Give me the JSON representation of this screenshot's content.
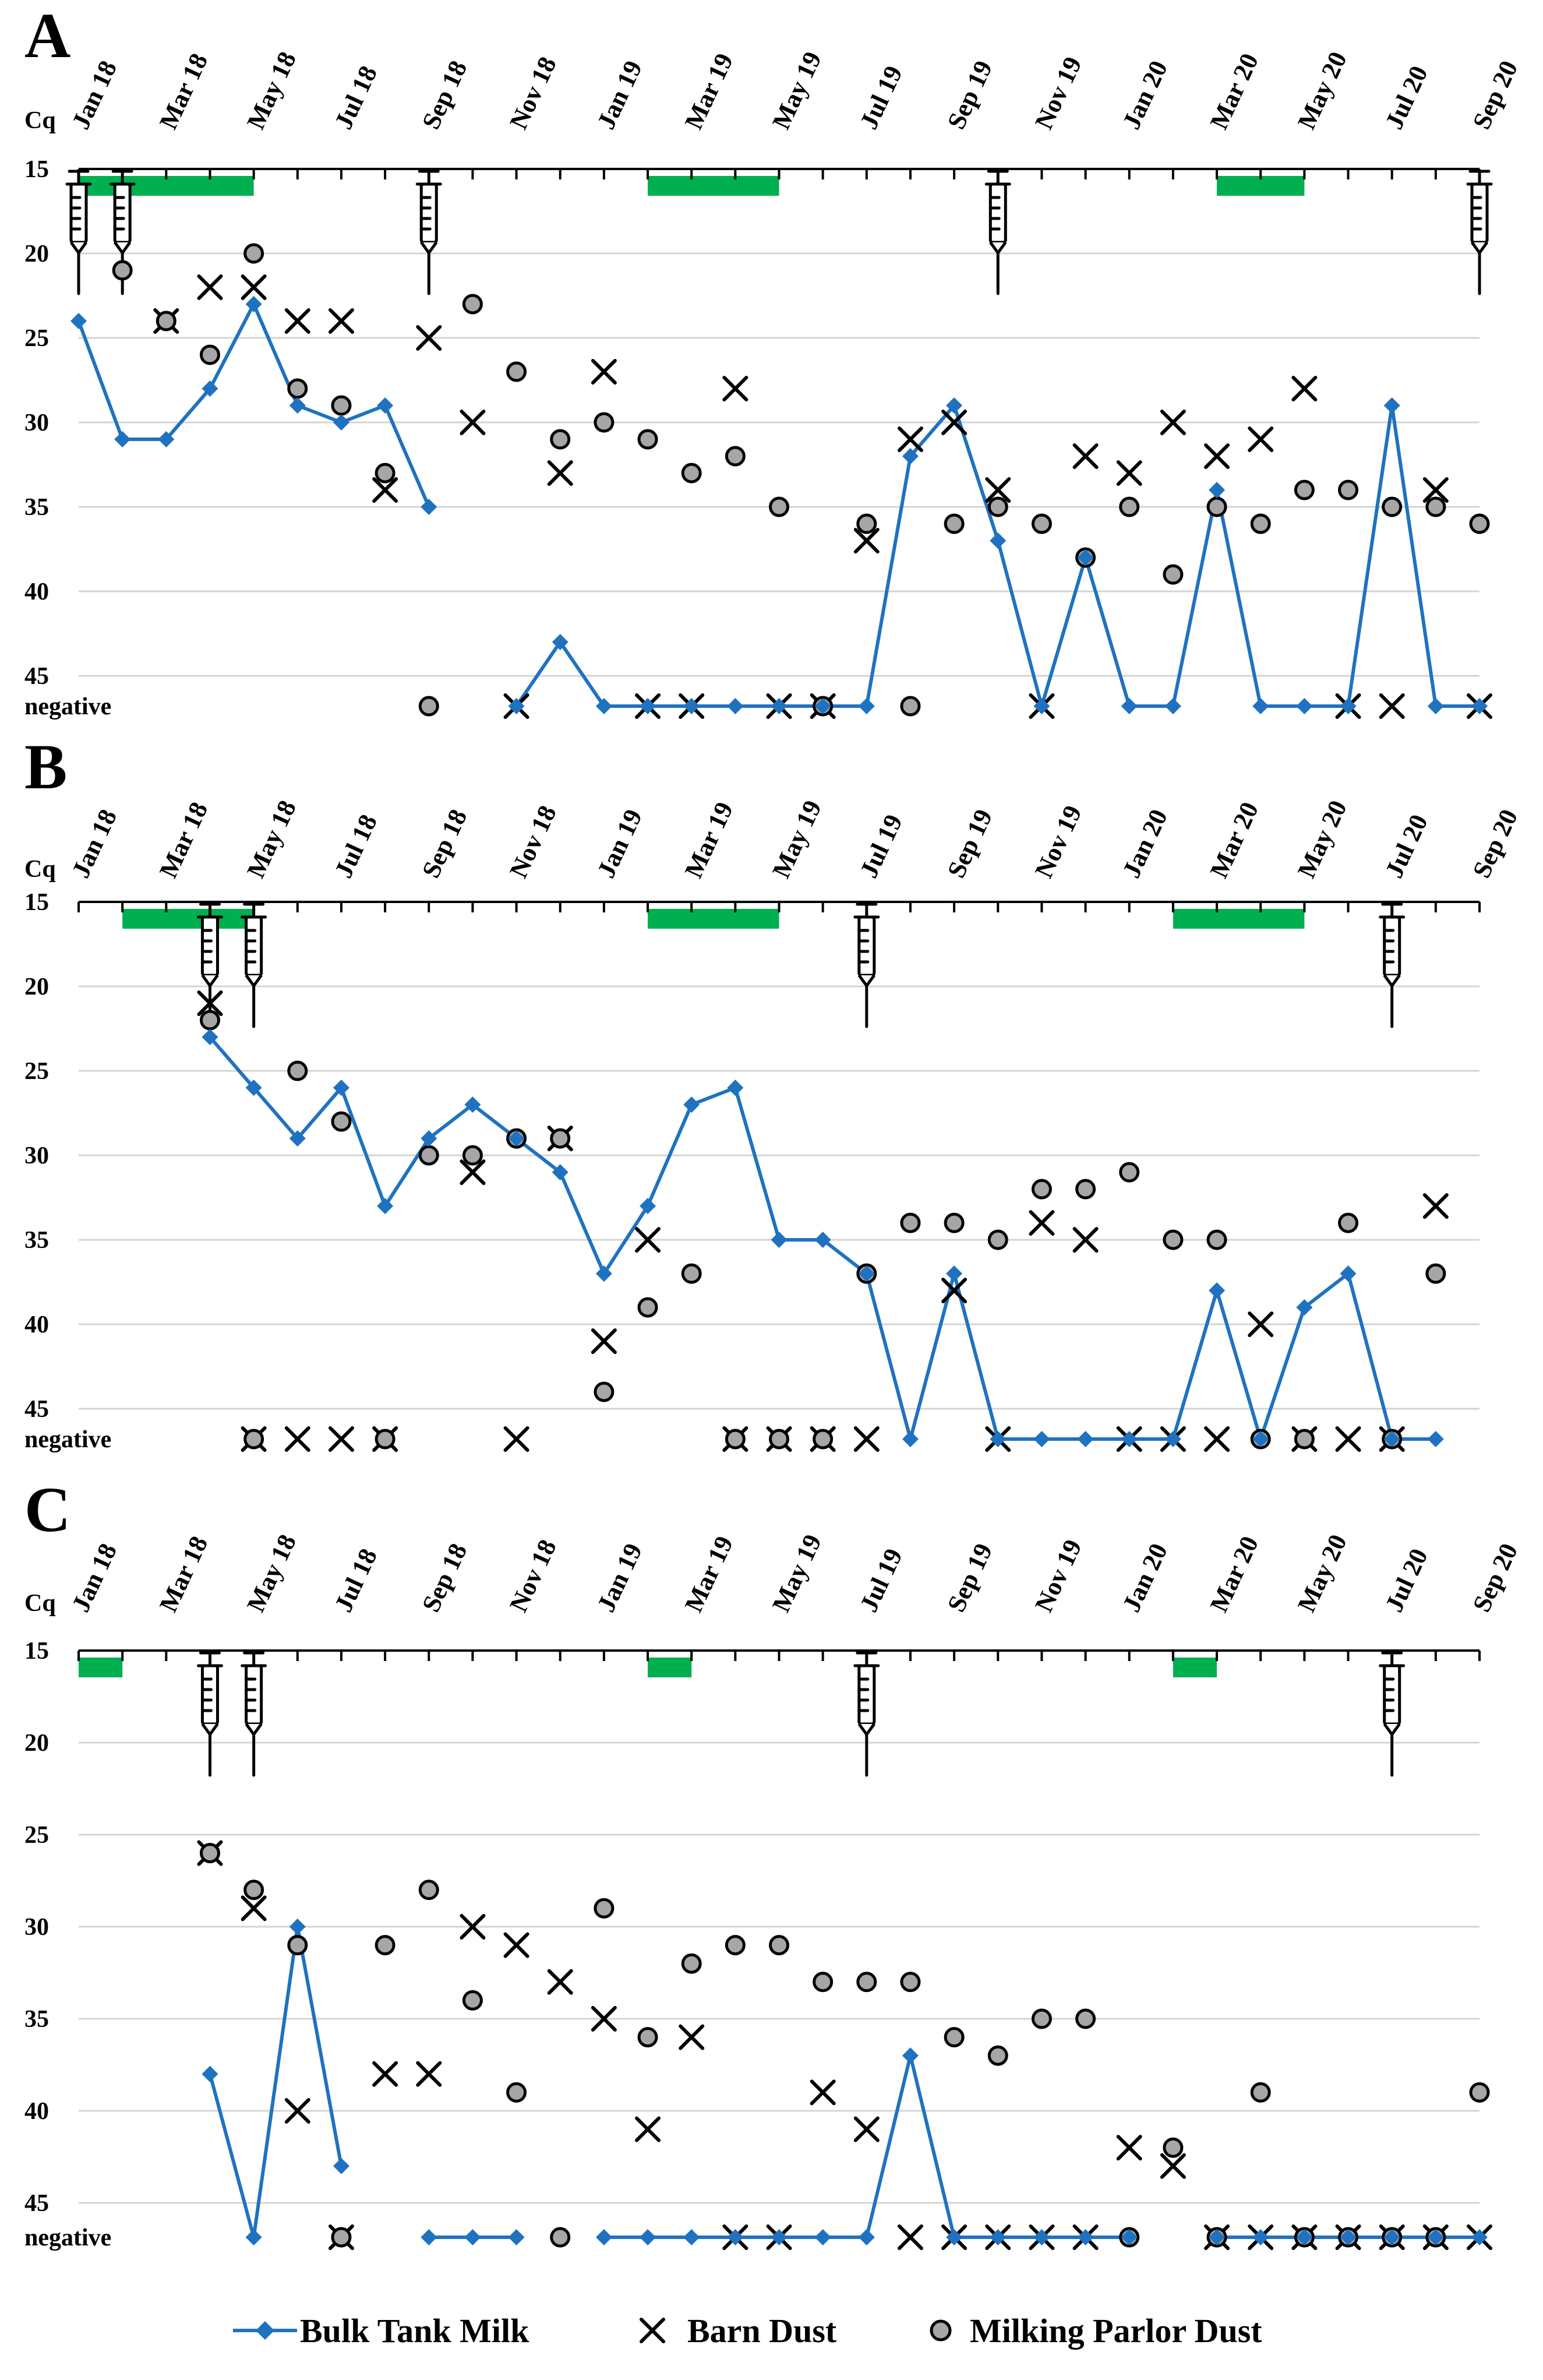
{
  "legend": {
    "milk": "Bulk Tank Milk",
    "barn": "Barn Dust",
    "parlor": "Milking Parlor Dust"
  },
  "colors": {
    "milk": "#1f72c0",
    "pasture": "#00b050",
    "parlor_fill": "#a6a6a6"
  },
  "icons": {
    "vaccination": "syringe-icon",
    "pasture_period": "green-bar"
  },
  "chart_data": [
    {
      "panel": "A",
      "type": "line",
      "ylabel": "Cq",
      "y_ticks": [
        "15",
        "20",
        "25",
        "30",
        "35",
        "40",
        "45",
        "negative"
      ],
      "ylim": [
        15,
        47
      ],
      "negative_value": 47,
      "x_labels": [
        "Jan 18",
        "Mar 18",
        "May 18",
        "Jul 18",
        "Sep 18",
        "Nov 18",
        "Jan 19",
        "Mar 19",
        "May 19",
        "Jul 19",
        "Sep 19",
        "Nov 19",
        "Jan 20",
        "Mar 20",
        "May 20",
        "Jul 20",
        "Sep 20"
      ],
      "x_month_range": [
        0,
        32
      ],
      "vaccinations_month": [
        0,
        1,
        8,
        21,
        32
      ],
      "pasture_months": [
        [
          0,
          4
        ],
        [
          13,
          16
        ],
        [
          26,
          28
        ]
      ],
      "milk": [
        [
          0,
          24
        ],
        [
          1,
          31
        ],
        [
          2,
          31
        ],
        [
          3,
          28
        ],
        [
          4,
          23
        ],
        [
          5,
          29
        ],
        [
          6,
          30
        ],
        [
          7,
          29
        ],
        [
          8,
          35
        ],
        null,
        [
          10,
          47
        ],
        [
          11,
          43
        ],
        [
          12,
          47
        ],
        [
          13,
          47
        ],
        [
          14,
          47
        ],
        [
          15,
          47
        ],
        [
          16,
          47
        ],
        [
          17,
          47
        ],
        [
          18,
          47
        ],
        [
          19,
          32
        ],
        [
          20,
          29
        ],
        [
          21,
          37
        ],
        [
          22,
          47
        ],
        [
          23,
          38
        ],
        [
          24,
          47
        ],
        [
          25,
          47
        ],
        [
          26,
          34
        ],
        [
          27,
          47
        ],
        [
          28,
          47
        ],
        [
          29,
          47
        ],
        [
          30,
          29
        ],
        [
          31,
          47
        ],
        [
          32,
          47
        ]
      ],
      "barn": [
        [
          2,
          24
        ],
        [
          3,
          22
        ],
        [
          4,
          22
        ],
        [
          5,
          24
        ],
        [
          6,
          24
        ],
        [
          7,
          34
        ],
        [
          8,
          25
        ],
        [
          9,
          30
        ],
        [
          10,
          47
        ],
        [
          11,
          33
        ],
        [
          12,
          27
        ],
        [
          13,
          47
        ],
        [
          14,
          47
        ],
        [
          15,
          28
        ],
        [
          16,
          47
        ],
        [
          17,
          47
        ],
        [
          18,
          37
        ],
        [
          19,
          31
        ],
        [
          20,
          30
        ],
        [
          21,
          34
        ],
        [
          22,
          47
        ],
        [
          23,
          32
        ],
        [
          24,
          33
        ],
        [
          25,
          30
        ],
        [
          26,
          32
        ],
        [
          27,
          31
        ],
        [
          28,
          28
        ],
        [
          29,
          47
        ],
        [
          30,
          47
        ],
        [
          31,
          34
        ],
        [
          32,
          47
        ]
      ],
      "parlor": [
        [
          1,
          21
        ],
        [
          2,
          24
        ],
        [
          3,
          26
        ],
        [
          4,
          20
        ],
        [
          5,
          28
        ],
        [
          6,
          29
        ],
        [
          7,
          33
        ],
        [
          8,
          47
        ],
        [
          9,
          23
        ],
        [
          10,
          27
        ],
        [
          11,
          31
        ],
        [
          12,
          30
        ],
        [
          13,
          31
        ],
        [
          14,
          33
        ],
        [
          15,
          32
        ],
        [
          16,
          35
        ],
        [
          17,
          47
        ],
        [
          18,
          36
        ],
        [
          19,
          47
        ],
        [
          20,
          36
        ],
        [
          21,
          35
        ],
        [
          22,
          36
        ],
        [
          23,
          38
        ],
        [
          24,
          35
        ],
        [
          25,
          39
        ],
        [
          26,
          35
        ],
        [
          27,
          36
        ],
        [
          28,
          34
        ],
        [
          29,
          34
        ],
        [
          30,
          35
        ],
        [
          31,
          35
        ],
        [
          32,
          36
        ]
      ]
    },
    {
      "panel": "B",
      "type": "line",
      "ylabel": "Cq",
      "y_ticks": [
        "15",
        "20",
        "25",
        "30",
        "35",
        "40",
        "45",
        "negative"
      ],
      "ylim": [
        15,
        47
      ],
      "negative_value": 47,
      "x_labels": [
        "Jan 18",
        "Mar 18",
        "May 18",
        "Jul 18",
        "Sep 18",
        "Nov 18",
        "Jan 19",
        "Mar 19",
        "May 19",
        "Jul 19",
        "Sep 19",
        "Nov 19",
        "Jan 20",
        "Mar 20",
        "May 20",
        "Jul 20",
        "Sep 20"
      ],
      "x_month_range": [
        0,
        32
      ],
      "vaccinations_month": [
        3,
        4,
        18,
        30
      ],
      "pasture_months": [
        [
          1,
          4
        ],
        [
          13,
          16
        ],
        [
          25,
          28
        ]
      ],
      "milk": [
        [
          3,
          23
        ],
        [
          4,
          26
        ],
        [
          5,
          29
        ],
        [
          6,
          26
        ],
        [
          7,
          33
        ],
        [
          8,
          29
        ],
        [
          9,
          27
        ],
        [
          10,
          29
        ],
        [
          11,
          31
        ],
        [
          12,
          37
        ],
        [
          13,
          33
        ],
        [
          14,
          27
        ],
        [
          15,
          26
        ],
        [
          16,
          35
        ],
        [
          17,
          35
        ],
        [
          18,
          37
        ],
        [
          19,
          47
        ],
        [
          20,
          37
        ],
        [
          21,
          47
        ],
        [
          22,
          47
        ],
        [
          23,
          47
        ],
        [
          24,
          47
        ],
        [
          25,
          47
        ],
        [
          26,
          38
        ],
        [
          27,
          47
        ],
        [
          28,
          39
        ],
        [
          29,
          37
        ],
        [
          30,
          47
        ],
        [
          31,
          47
        ]
      ],
      "barn": [
        [
          3,
          21
        ],
        [
          4,
          47
        ],
        [
          5,
          47
        ],
        [
          6,
          47
        ],
        [
          7,
          47
        ],
        [
          9,
          31
        ],
        [
          10,
          47
        ],
        [
          11,
          29
        ],
        [
          12,
          41
        ],
        [
          13,
          35
        ],
        [
          15,
          47
        ],
        [
          16,
          47
        ],
        [
          17,
          47
        ],
        [
          18,
          47
        ],
        [
          20,
          38
        ],
        [
          21,
          47
        ],
        [
          22,
          34
        ],
        [
          23,
          35
        ],
        [
          24,
          47
        ],
        [
          25,
          47
        ],
        [
          26,
          47
        ],
        [
          27,
          40
        ],
        [
          28,
          47
        ],
        [
          29,
          47
        ],
        [
          30,
          47
        ],
        [
          31,
          33
        ]
      ],
      "parlor": [
        [
          3,
          22
        ],
        [
          4,
          47
        ],
        [
          5,
          25
        ],
        [
          6,
          28
        ],
        [
          7,
          47
        ],
        [
          8,
          30
        ],
        [
          9,
          30
        ],
        [
          10,
          29
        ],
        [
          11,
          29
        ],
        [
          12,
          44
        ],
        [
          13,
          39
        ],
        [
          14,
          37
        ],
        [
          15,
          47
        ],
        [
          16,
          47
        ],
        [
          17,
          47
        ],
        [
          18,
          37
        ],
        [
          19,
          34
        ],
        [
          20,
          34
        ],
        [
          21,
          35
        ],
        [
          22,
          32
        ],
        [
          23,
          32
        ],
        [
          24,
          31
        ],
        [
          25,
          35
        ],
        [
          26,
          35
        ],
        [
          27,
          47
        ],
        [
          28,
          47
        ],
        [
          29,
          34
        ],
        [
          30,
          47
        ],
        [
          31,
          37
        ]
      ]
    },
    {
      "panel": "C",
      "type": "line",
      "ylabel": "Cq",
      "y_ticks": [
        "15",
        "20",
        "25",
        "30",
        "35",
        "40",
        "45",
        "negative"
      ],
      "ylim": [
        15,
        47
      ],
      "negative_value": 47,
      "x_labels": [
        "Jan 18",
        "Mar 18",
        "May 18",
        "Jul 18",
        "Sep 18",
        "Nov 18",
        "Jan 19",
        "Mar 19",
        "May 19",
        "Jul 19",
        "Sep 19",
        "Nov 19",
        "Jan 20",
        "Mar 20",
        "May 20",
        "Jul 20",
        "Sep 20"
      ],
      "x_month_range": [
        0,
        32
      ],
      "vaccinations_month": [
        3,
        4,
        18,
        30
      ],
      "pasture_months": [
        [
          0,
          1
        ],
        [
          13,
          14
        ],
        [
          25,
          26
        ]
      ],
      "milk": [
        [
          3,
          38
        ],
        [
          4,
          47
        ],
        [
          5,
          30
        ],
        [
          6,
          43
        ],
        null,
        [
          8,
          47
        ],
        [
          9,
          47
        ],
        [
          10,
          47
        ],
        null,
        [
          12,
          47
        ],
        [
          13,
          47
        ],
        [
          14,
          47
        ],
        [
          15,
          47
        ],
        [
          16,
          47
        ],
        [
          17,
          47
        ],
        [
          18,
          47
        ],
        [
          19,
          37
        ],
        [
          20,
          47
        ],
        [
          21,
          47
        ],
        [
          22,
          47
        ],
        [
          23,
          47
        ],
        [
          24,
          47
        ],
        null,
        [
          26,
          47
        ],
        [
          27,
          47
        ],
        [
          28,
          47
        ],
        [
          29,
          47
        ],
        [
          30,
          47
        ],
        [
          31,
          47
        ],
        [
          32,
          47
        ]
      ],
      "barn": [
        [
          3,
          26
        ],
        [
          4,
          29
        ],
        [
          5,
          40
        ],
        [
          6,
          47
        ],
        [
          7,
          38
        ],
        [
          8,
          38
        ],
        [
          9,
          30
        ],
        [
          10,
          31
        ],
        [
          11,
          33
        ],
        [
          12,
          35
        ],
        [
          13,
          41
        ],
        [
          14,
          36
        ],
        [
          15,
          47
        ],
        [
          16,
          47
        ],
        [
          17,
          39
        ],
        [
          18,
          41
        ],
        [
          19,
          47
        ],
        [
          20,
          47
        ],
        [
          21,
          47
        ],
        [
          22,
          47
        ],
        [
          23,
          47
        ],
        [
          24,
          42
        ],
        [
          25,
          43
        ],
        [
          26,
          47
        ],
        [
          27,
          47
        ],
        [
          28,
          47
        ],
        [
          29,
          47
        ],
        [
          30,
          47
        ],
        [
          31,
          47
        ],
        [
          32,
          47
        ]
      ],
      "parlor": [
        [
          3,
          26
        ],
        [
          4,
          28
        ],
        [
          5,
          31
        ],
        [
          6,
          47
        ],
        [
          7,
          31
        ],
        [
          8,
          28
        ],
        [
          9,
          34
        ],
        [
          10,
          39
        ],
        [
          11,
          47
        ],
        [
          12,
          29
        ],
        [
          13,
          36
        ],
        [
          14,
          32
        ],
        [
          15,
          31
        ],
        [
          16,
          31
        ],
        [
          17,
          33
        ],
        [
          18,
          33
        ],
        [
          19,
          33
        ],
        [
          20,
          36
        ],
        [
          21,
          37
        ],
        [
          22,
          35
        ],
        [
          23,
          35
        ],
        [
          24,
          47
        ],
        [
          25,
          42
        ],
        [
          26,
          47
        ],
        [
          27,
          39
        ],
        [
          28,
          47
        ],
        [
          29,
          47
        ],
        [
          30,
          47
        ],
        [
          31,
          47
        ],
        [
          32,
          39
        ]
      ]
    }
  ]
}
